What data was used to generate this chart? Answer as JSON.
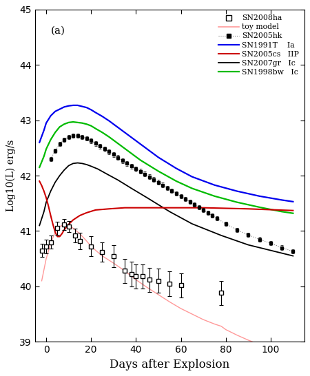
{
  "title": "(a)",
  "xlabel": "Days after Explosion",
  "ylabel": "Log10(L) erg/s",
  "xlim": [
    -5,
    115
  ],
  "ylim": [
    39,
    45
  ],
  "yticks": [
    39,
    40,
    41,
    42,
    43,
    44,
    45
  ],
  "xticks": [
    0,
    20,
    40,
    60,
    80,
    100
  ],
  "bg_color": "#ffffff",
  "SN2008ha_x": [
    -2,
    0,
    2,
    5,
    8,
    10,
    13,
    15,
    20,
    25,
    30,
    35,
    38,
    40,
    43,
    46,
    50,
    55,
    60,
    78
  ],
  "SN2008ha_y": [
    40.65,
    40.72,
    40.8,
    41.05,
    41.12,
    41.08,
    40.92,
    40.82,
    40.72,
    40.62,
    40.55,
    40.28,
    40.22,
    40.18,
    40.18,
    40.12,
    40.1,
    40.05,
    40.02,
    39.88
  ],
  "SN2008ha_yerr": [
    0.12,
    0.12,
    0.12,
    0.12,
    0.1,
    0.1,
    0.12,
    0.15,
    0.18,
    0.18,
    0.2,
    0.22,
    0.22,
    0.22,
    0.22,
    0.22,
    0.22,
    0.22,
    0.22,
    0.22
  ],
  "toy_model_x": [
    -2,
    0,
    2,
    4,
    6,
    8,
    10,
    12,
    15,
    18,
    20,
    25,
    30,
    35,
    40,
    45,
    50,
    55,
    60,
    65,
    70,
    75,
    78,
    80,
    85,
    90,
    95,
    100,
    105,
    110
  ],
  "toy_model_y": [
    40.1,
    40.5,
    40.78,
    40.98,
    41.08,
    41.12,
    41.1,
    41.05,
    40.95,
    40.82,
    40.72,
    40.55,
    40.42,
    40.28,
    40.12,
    39.98,
    39.85,
    39.72,
    39.6,
    39.5,
    39.4,
    39.32,
    39.28,
    39.22,
    39.12,
    39.03,
    38.95,
    38.87,
    38.8,
    38.73
  ],
  "SN2005hk_x": [
    2,
    4,
    6,
    8,
    10,
    12,
    14,
    16,
    18,
    20,
    22,
    24,
    26,
    28,
    30,
    32,
    34,
    36,
    38,
    40,
    42,
    44,
    46,
    48,
    50,
    52,
    54,
    56,
    58,
    60,
    62,
    64,
    66,
    68,
    70,
    72,
    74,
    76,
    80,
    85,
    90,
    95,
    100,
    105,
    110
  ],
  "SN2005hk_y": [
    42.3,
    42.45,
    42.57,
    42.65,
    42.7,
    42.72,
    42.72,
    42.7,
    42.67,
    42.63,
    42.58,
    42.53,
    42.48,
    42.43,
    42.38,
    42.33,
    42.27,
    42.22,
    42.17,
    42.12,
    42.08,
    42.03,
    41.98,
    41.93,
    41.88,
    41.83,
    41.78,
    41.73,
    41.68,
    41.63,
    41.58,
    41.53,
    41.48,
    41.43,
    41.38,
    41.33,
    41.28,
    41.23,
    41.13,
    41.02,
    40.93,
    40.85,
    40.78,
    40.7,
    40.63
  ],
  "SN2005hk_yerr": 0.04,
  "SN2005hk_dotted_cutoff": 65,
  "SN1991T_x": [
    -3,
    -1,
    0,
    2,
    4,
    6,
    8,
    10,
    12,
    14,
    16,
    18,
    20,
    22,
    25,
    28,
    32,
    37,
    42,
    50,
    58,
    65,
    75,
    85,
    95,
    105,
    110
  ],
  "SN1991T_y": [
    42.6,
    42.82,
    42.95,
    43.08,
    43.16,
    43.2,
    43.24,
    43.26,
    43.27,
    43.27,
    43.25,
    43.23,
    43.19,
    43.14,
    43.07,
    42.99,
    42.87,
    42.72,
    42.57,
    42.33,
    42.13,
    41.98,
    41.83,
    41.72,
    41.63,
    41.56,
    41.53
  ],
  "SN2005cs_x": [
    -3,
    -2,
    -1,
    0,
    1,
    2,
    3,
    4,
    5,
    6,
    7,
    8,
    10,
    12,
    15,
    18,
    22,
    28,
    35,
    45,
    55,
    70,
    90,
    110
  ],
  "SN2005cs_y": [
    41.9,
    41.82,
    41.72,
    41.6,
    41.45,
    41.28,
    41.12,
    40.98,
    40.9,
    40.9,
    40.95,
    41.02,
    41.12,
    41.2,
    41.28,
    41.33,
    41.38,
    41.4,
    41.42,
    41.42,
    41.42,
    41.42,
    41.4,
    41.37
  ],
  "SN2007gr_x": [
    -3,
    -1,
    0,
    2,
    4,
    6,
    8,
    10,
    12,
    14,
    16,
    18,
    20,
    23,
    27,
    32,
    38,
    45,
    55,
    65,
    78,
    90,
    105,
    110
  ],
  "SN2007gr_y": [
    41.1,
    41.35,
    41.52,
    41.72,
    41.88,
    42.0,
    42.1,
    42.18,
    42.22,
    42.23,
    42.22,
    42.2,
    42.17,
    42.12,
    42.03,
    41.92,
    41.77,
    41.6,
    41.35,
    41.13,
    40.92,
    40.75,
    40.6,
    40.55
  ],
  "SN1998bw_x": [
    -3,
    -1,
    0,
    2,
    4,
    6,
    8,
    10,
    12,
    14,
    16,
    18,
    20,
    22,
    25,
    28,
    32,
    37,
    42,
    50,
    58,
    65,
    75,
    85,
    95,
    105,
    110
  ],
  "SN1998bw_y": [
    42.15,
    42.35,
    42.48,
    42.65,
    42.78,
    42.88,
    42.93,
    42.96,
    42.97,
    42.96,
    42.95,
    42.93,
    42.9,
    42.85,
    42.78,
    42.7,
    42.58,
    42.43,
    42.28,
    42.08,
    41.9,
    41.77,
    41.63,
    41.52,
    41.43,
    41.35,
    41.32
  ]
}
